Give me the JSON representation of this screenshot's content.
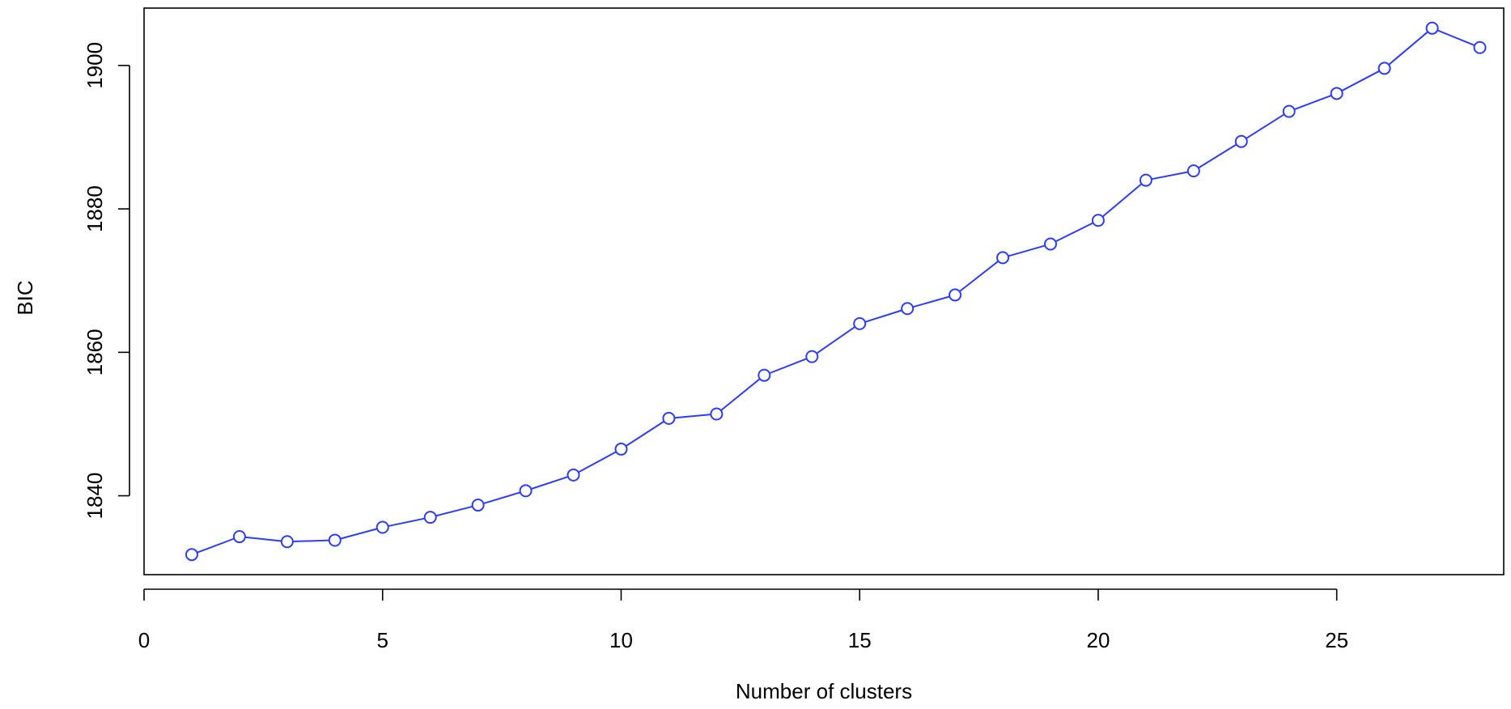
{
  "chart_data": {
    "type": "line",
    "title": "",
    "xlabel": "Number of clusters",
    "ylabel": "BIC",
    "xlim": [
      0,
      28.5
    ],
    "ylim": [
      1829,
      1908
    ],
    "x_ticks": [
      0,
      5,
      10,
      15,
      20,
      25
    ],
    "y_ticks": [
      1840,
      1860,
      1880,
      1900
    ],
    "x_tick_labels": [
      "0",
      "5",
      "10",
      "15",
      "20",
      "25"
    ],
    "y_tick_labels": [
      "1840",
      "1860",
      "1880",
      "1900"
    ],
    "grid": false,
    "legend": "none",
    "marker": "open-circle",
    "series": [
      {
        "color": "#2b3cff",
        "x": [
          1,
          2,
          3,
          4,
          5,
          6,
          7,
          8,
          9,
          10,
          11,
          12,
          13,
          14,
          15,
          16,
          17,
          18,
          19,
          20,
          21,
          22,
          23,
          24,
          25,
          26,
          27,
          28
        ],
        "y": [
          1831.8,
          1834.3,
          1833.6,
          1833.8,
          1835.6,
          1837.0,
          1838.7,
          1840.7,
          1842.9,
          1846.5,
          1850.8,
          1851.4,
          1856.8,
          1859.4,
          1864.0,
          1866.1,
          1868.0,
          1873.2,
          1875.1,
          1878.4,
          1884.0,
          1885.3,
          1889.4,
          1893.6,
          1896.1,
          1899.6,
          1905.2,
          1902.5
        ]
      }
    ]
  }
}
